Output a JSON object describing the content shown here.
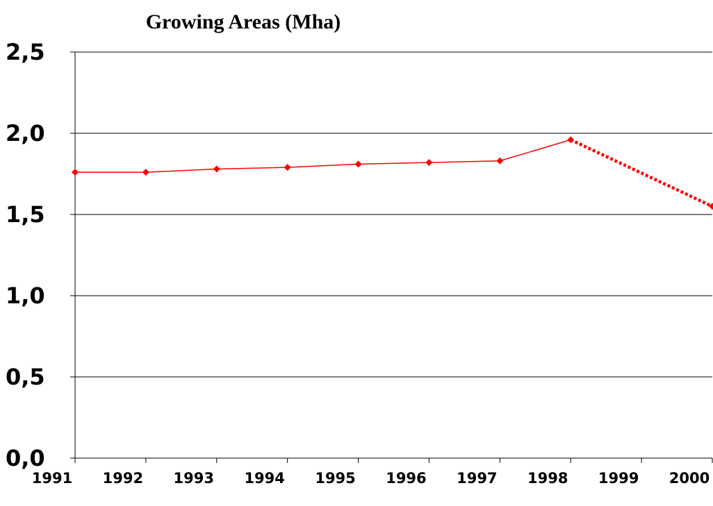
{
  "chart_data": {
    "type": "line",
    "title": "Growing  Areas (Mha)",
    "xlim": [
      1991,
      2000
    ],
    "xticks": [
      1991,
      1992,
      1993,
      1994,
      1995,
      1996,
      1997,
      1998,
      1999,
      2000
    ],
    "ylim": [
      0,
      2.5
    ],
    "yticks": [
      {
        "value": 0,
        "label": "0,0"
      },
      {
        "value": 0.5,
        "label": "0,5"
      },
      {
        "value": 1,
        "label": "1,0"
      },
      {
        "value": 1.5,
        "label": "1,5"
      },
      {
        "value": 2,
        "label": "2,0"
      },
      {
        "value": 2.5,
        "label": "2,5"
      }
    ],
    "grid": true,
    "series": [
      {
        "color": "#ff0000",
        "line_style": "solid",
        "x": [
          1991,
          1992,
          1993,
          1994,
          1995,
          1996,
          1997,
          1998
        ],
        "values": [
          1.76,
          1.76,
          1.78,
          1.79,
          1.81,
          1.82,
          1.83,
          1.96
        ]
      },
      {
        "color": "#ff0000",
        "line_style": "dotted",
        "x": [
          1998,
          2000
        ],
        "values": [
          1.96,
          1.55
        ]
      }
    ]
  }
}
